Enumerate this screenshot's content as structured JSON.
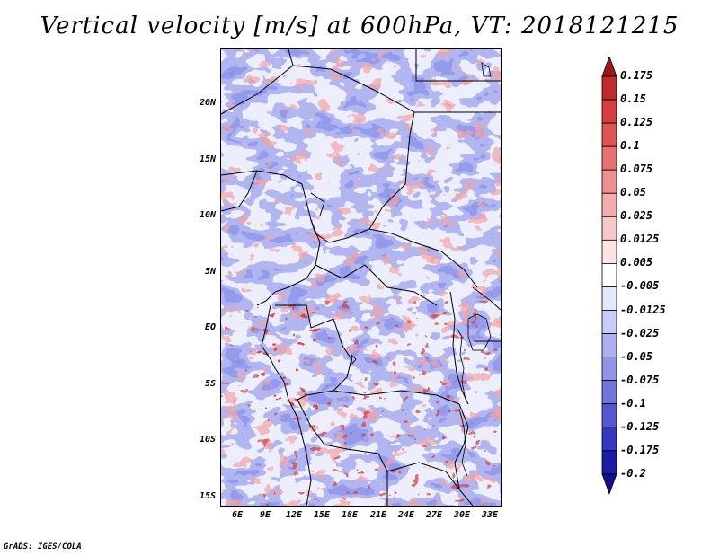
{
  "title": "Vertical velocity [m/s] at 600hPa, VT: 2018121215",
  "credit": "GrADS: IGES/COLA",
  "lat_labels": [
    "20N",
    "15N",
    "10N",
    "5N",
    "EQ",
    "5S",
    "10S",
    "15S"
  ],
  "lon_labels": [
    "6E",
    "9E",
    "12E",
    "15E",
    "18E",
    "21E",
    "24E",
    "27E",
    "30E",
    "33E"
  ],
  "colorbar": {
    "labels": [
      "0.175",
      "0.15",
      "0.125",
      "0.1",
      "0.075",
      "0.05",
      "0.025",
      "0.0125",
      "0.005",
      "-0.005",
      "-0.0125",
      "-0.025",
      "-0.05",
      "-0.075",
      "-0.1",
      "-0.125",
      "-0.175",
      "-0.2"
    ],
    "colors": [
      "#a01818",
      "#c02a2a",
      "#d83c3c",
      "#e05454",
      "#e87070",
      "#ee9090",
      "#f4acac",
      "#f8c8c8",
      "#fce4e4",
      "#ffffff",
      "#e4e6fc",
      "#c8ccf8",
      "#acb0f0",
      "#9094e8",
      "#7074dc",
      "#5458d0",
      "#3438c0",
      "#1c1ca8",
      "#101090"
    ]
  }
}
